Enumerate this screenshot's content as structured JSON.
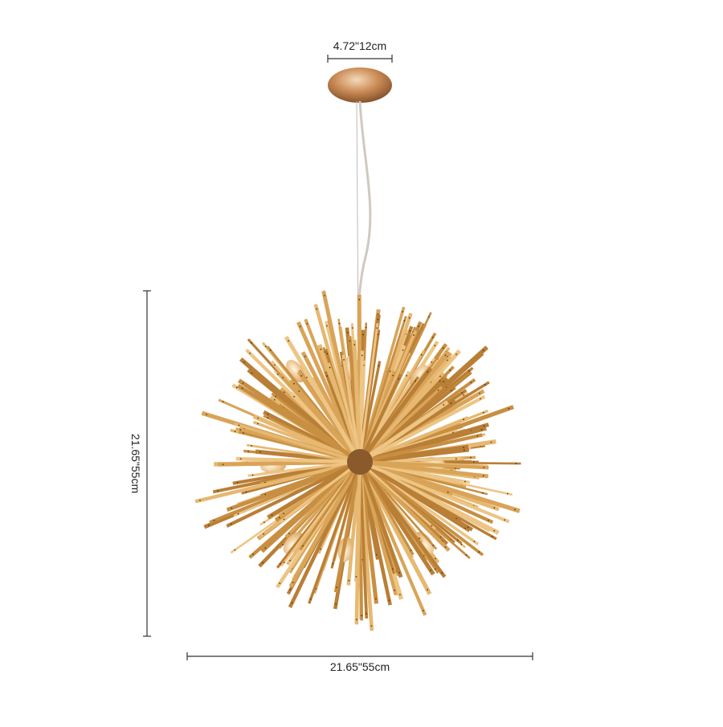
{
  "dimensions": {
    "canopy_width": "4.72\"12cm",
    "height": "21.65\"55cm",
    "width": "21.65\"55cm"
  }
}
